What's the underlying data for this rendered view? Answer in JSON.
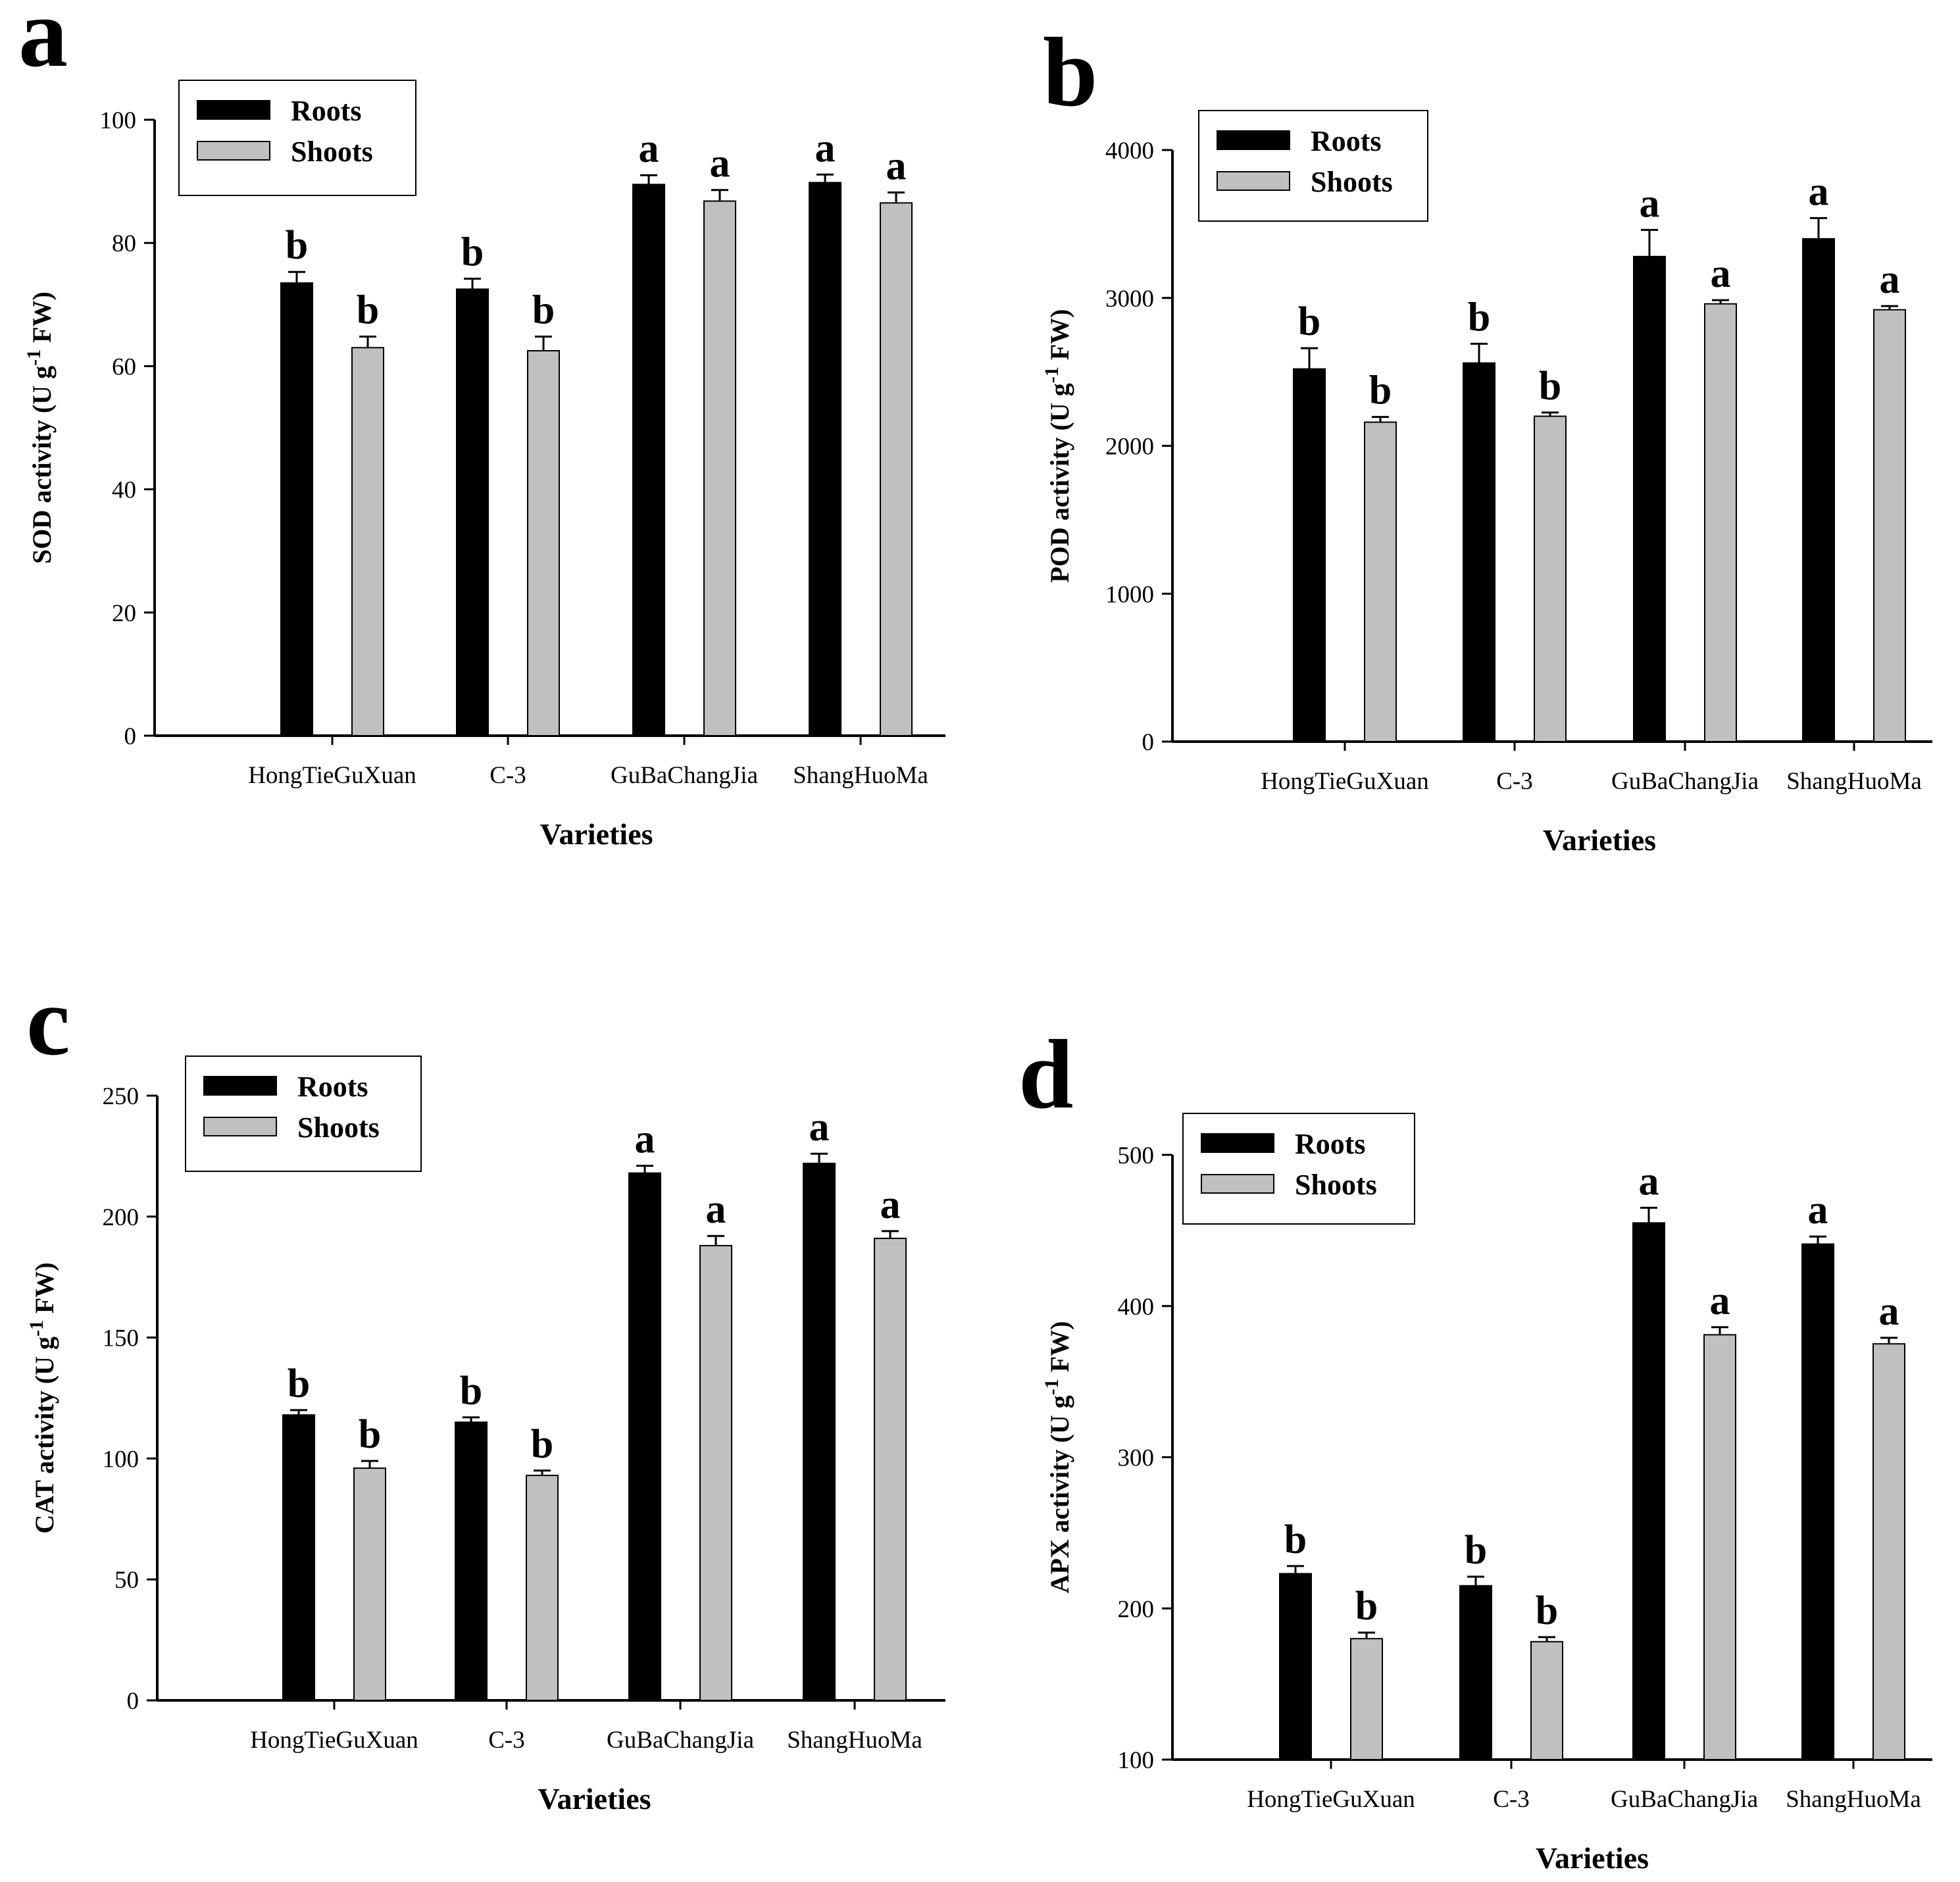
{
  "chart_data": [
    {
      "panel": "a",
      "type": "bar",
      "categories": [
        "HongTieGuXuan",
        "C-3",
        "GuBaChangJia",
        "ShangHuoMa"
      ],
      "series": [
        {
          "name": "Roots",
          "color": "#000000",
          "values": [
            73.5,
            72.5,
            89.5,
            89.8
          ],
          "errors": [
            1.8,
            1.7,
            1.5,
            1.3
          ],
          "letters": [
            "b",
            "b",
            "a",
            "a"
          ]
        },
        {
          "name": "Shoots",
          "color": "#c0c0c0",
          "values": [
            63.0,
            62.5,
            86.8,
            86.5
          ],
          "errors": [
            1.8,
            2.3,
            1.8,
            1.7
          ],
          "letters": [
            "b",
            "b",
            "a",
            "a"
          ]
        }
      ],
      "xlabel": "Varieties",
      "ylabel": {
        "prefix": "SOD activity (U g",
        "sup": "-1",
        "suffix": " FW)"
      },
      "ylim": [
        0,
        100
      ],
      "yticks": [
        0,
        20,
        40,
        60,
        80,
        100
      ]
    },
    {
      "panel": "b",
      "type": "bar",
      "categories": [
        "HongTieGuXuan",
        "C-3",
        "GuBaChangJia",
        "ShangHuoMa"
      ],
      "series": [
        {
          "name": "Roots",
          "color": "#000000",
          "values": [
            2520,
            2560,
            3280,
            3400
          ],
          "errors": [
            140,
            130,
            180,
            140
          ],
          "letters": [
            "b",
            "b",
            "a",
            "a"
          ]
        },
        {
          "name": "Shoots",
          "color": "#c0c0c0",
          "values": [
            2160,
            2200,
            2960,
            2920
          ],
          "errors": [
            35,
            25,
            25,
            25
          ],
          "letters": [
            "b",
            "b",
            "a",
            "a"
          ]
        }
      ],
      "xlabel": "Varieties",
      "ylabel": {
        "prefix": "POD activity (U g",
        "sup": "-1",
        "suffix": " FW)"
      },
      "ylim": [
        0,
        4000
      ],
      "yticks": [
        0,
        1000,
        2000,
        3000,
        4000
      ]
    },
    {
      "panel": "c",
      "type": "bar",
      "categories": [
        "HongTieGuXuan",
        "C-3",
        "GuBaChangJia",
        "ShangHuoMa"
      ],
      "series": [
        {
          "name": "Roots",
          "color": "#000000",
          "values": [
            118,
            115,
            218,
            222
          ],
          "errors": [
            2,
            2,
            3,
            4
          ],
          "letters": [
            "b",
            "b",
            "a",
            "a"
          ]
        },
        {
          "name": "Shoots",
          "color": "#c0c0c0",
          "values": [
            96,
            93,
            188,
            191
          ],
          "errors": [
            3,
            2,
            4,
            3
          ],
          "letters": [
            "b",
            "b",
            "a",
            "a"
          ]
        }
      ],
      "xlabel": "Varieties",
      "ylabel": {
        "prefix": "CAT activity (U g",
        "sup": "-1",
        "suffix": " FW)"
      },
      "ylim": [
        0,
        250
      ],
      "yticks": [
        0,
        50,
        100,
        150,
        200,
        250
      ]
    },
    {
      "panel": "d",
      "type": "bar",
      "categories": [
        "HongTieGuXuan",
        "C-3",
        "GuBaChangJia",
        "ShangHuoMa"
      ],
      "series": [
        {
          "name": "Roots",
          "color": "#000000",
          "values": [
            223,
            215,
            455,
            441
          ],
          "errors": [
            5,
            6,
            10,
            5
          ],
          "letters": [
            "b",
            "b",
            "a",
            "a"
          ]
        },
        {
          "name": "Shoots",
          "color": "#c0c0c0",
          "values": [
            180,
            178,
            381,
            375
          ],
          "errors": [
            4,
            3,
            5,
            4
          ],
          "letters": [
            "b",
            "b",
            "a",
            "a"
          ]
        }
      ],
      "xlabel": "Varieties",
      "ylabel": {
        "prefix": "APX activity (U g",
        "sup": "-1",
        "suffix": " FW)"
      },
      "ylim": [
        100,
        500
      ],
      "yticks": [
        100,
        200,
        300,
        400,
        500
      ]
    }
  ]
}
